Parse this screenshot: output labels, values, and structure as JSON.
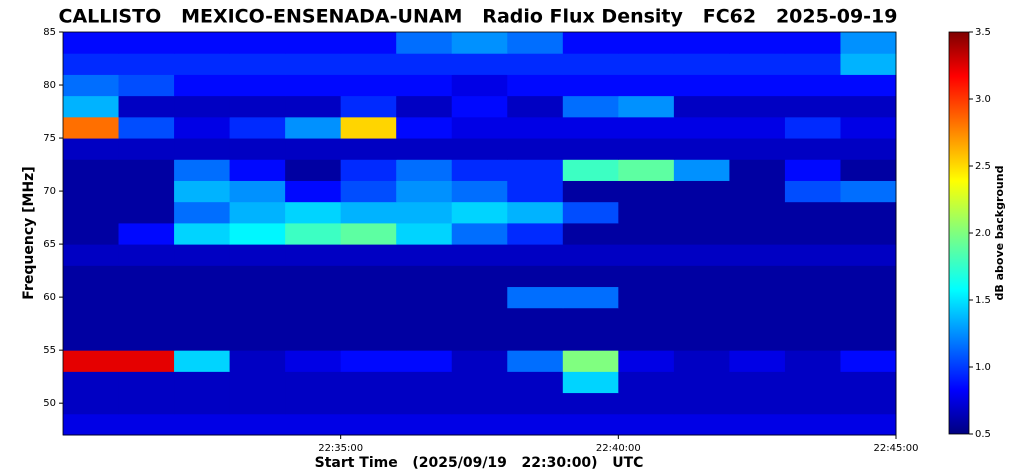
{
  "chart_data": {
    "type": "heatmap",
    "title": "CALLISTO   MEXICO-ENSENADA-UNAM   Radio Flux Density   FC62   2025-09-19",
    "xlabel": "Start Time   (2025/09/19   22:30:00)   UTC",
    "ylabel": "Frequency [MHz]",
    "colorbar_label": "dB above background",
    "colormap": "jet",
    "xlim": [
      30,
      45
    ],
    "xticks": [
      {
        "value": 35,
        "label": "22:35:00"
      },
      {
        "value": 40,
        "label": "22:40:00"
      },
      {
        "value": 45,
        "label": "22:45:00"
      }
    ],
    "ylim": [
      47,
      85
    ],
    "yticks": [
      50,
      55,
      60,
      65,
      70,
      75,
      80,
      85
    ],
    "clim": [
      0.5,
      3.5
    ],
    "cticks": [
      0.5,
      {
        "value": 1,
        "label": "1.0"
      },
      1.5,
      {
        "value": 2,
        "label": "2.0"
      },
      2.5,
      {
        "value": 3,
        "label": "3.0"
      },
      3.5
    ],
    "xbins": [
      30,
      31,
      32,
      33,
      34,
      35,
      36,
      37,
      38,
      39,
      40,
      41,
      42,
      43,
      44,
      45
    ],
    "ybins": [
      47,
      49,
      51,
      53,
      55,
      57,
      59,
      61,
      63,
      65,
      67,
      69,
      71,
      73,
      75,
      77,
      79,
      81,
      83,
      85
    ],
    "z": [
      [
        0.8,
        0.8,
        0.8,
        0.8,
        0.8,
        0.8,
        0.8,
        0.8,
        0.8,
        0.8,
        0.8,
        0.8,
        0.8,
        0.8,
        0.8
      ],
      [
        0.7,
        0.7,
        0.7,
        0.7,
        0.7,
        0.7,
        0.7,
        0.7,
        0.7,
        0.7,
        0.7,
        0.7,
        0.7,
        0.7,
        0.7
      ],
      [
        0.7,
        0.7,
        0.7,
        0.7,
        0.7,
        0.7,
        0.7,
        0.7,
        0.7,
        1.5,
        0.7,
        0.7,
        0.7,
        0.7,
        0.7
      ],
      [
        3.2,
        3.2,
        1.5,
        0.7,
        0.8,
        0.9,
        0.9,
        0.7,
        1.2,
        2.0,
        0.8,
        0.7,
        0.8,
        0.7,
        0.9
      ],
      [
        0.6,
        0.6,
        0.6,
        0.6,
        0.6,
        0.6,
        0.6,
        0.6,
        0.6,
        0.6,
        0.6,
        0.6,
        0.6,
        0.6,
        0.6
      ],
      [
        0.6,
        0.6,
        0.6,
        0.6,
        0.6,
        0.6,
        0.6,
        0.6,
        0.6,
        0.6,
        0.6,
        0.6,
        0.6,
        0.6,
        0.6
      ],
      [
        0.6,
        0.6,
        0.6,
        0.6,
        0.6,
        0.6,
        0.6,
        0.6,
        1.2,
        1.2,
        0.6,
        0.6,
        0.6,
        0.6,
        0.6
      ],
      [
        0.6,
        0.6,
        0.6,
        0.6,
        0.6,
        0.6,
        0.6,
        0.6,
        0.6,
        0.6,
        0.6,
        0.6,
        0.6,
        0.6,
        0.6
      ],
      [
        0.7,
        0.7,
        0.7,
        0.7,
        0.7,
        0.7,
        0.7,
        0.7,
        0.7,
        0.7,
        0.7,
        0.7,
        0.7,
        0.7,
        0.7
      ],
      [
        0.6,
        0.9,
        1.5,
        1.6,
        1.8,
        1.9,
        1.5,
        1.2,
        1.0,
        0.6,
        0.6,
        0.6,
        0.6,
        0.6,
        0.6
      ],
      [
        0.6,
        0.6,
        1.2,
        1.4,
        1.5,
        1.4,
        1.4,
        1.5,
        1.4,
        1.1,
        0.6,
        0.6,
        0.6,
        0.6,
        0.6
      ],
      [
        0.6,
        0.6,
        1.4,
        1.3,
        0.9,
        1.1,
        1.3,
        1.2,
        1.0,
        0.6,
        0.6,
        0.6,
        0.6,
        1.1,
        1.2
      ],
      [
        0.6,
        0.6,
        1.2,
        0.9,
        0.6,
        1.0,
        1.2,
        1.0,
        1.0,
        1.8,
        1.9,
        1.3,
        0.6,
        0.9,
        0.6
      ],
      [
        0.7,
        0.7,
        0.7,
        0.7,
        0.7,
        0.7,
        0.7,
        0.7,
        0.7,
        0.7,
        0.7,
        0.7,
        0.7,
        0.7,
        0.7
      ],
      [
        2.8,
        1.1,
        0.8,
        1.0,
        1.3,
        2.5,
        0.9,
        0.8,
        0.8,
        0.8,
        0.8,
        0.8,
        0.8,
        1.0,
        0.8
      ],
      [
        1.4,
        0.7,
        0.7,
        0.7,
        0.7,
        1.0,
        0.7,
        0.9,
        0.7,
        1.2,
        1.3,
        0.7,
        0.7,
        0.7,
        0.7
      ],
      [
        1.2,
        1.1,
        0.9,
        0.9,
        0.9,
        0.9,
        0.9,
        0.8,
        0.9,
        0.9,
        0.9,
        0.9,
        0.9,
        0.9,
        0.9
      ],
      [
        1.0,
        1.0,
        1.0,
        1.0,
        1.0,
        1.0,
        1.0,
        1.0,
        1.0,
        1.0,
        1.0,
        1.0,
        1.0,
        1.0,
        1.4
      ],
      [
        0.9,
        0.9,
        0.9,
        0.9,
        0.9,
        0.9,
        1.2,
        1.3,
        1.2,
        0.9,
        0.9,
        0.9,
        0.9,
        0.9,
        1.3
      ]
    ]
  }
}
